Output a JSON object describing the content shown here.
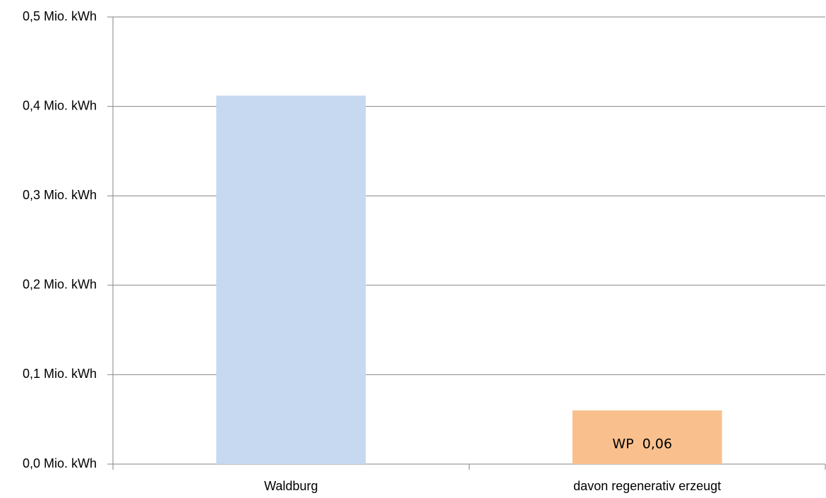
{
  "chart_data": {
    "type": "bar",
    "categories": [
      "Waldburg",
      "davon regenerativ erzeugt"
    ],
    "values": [
      0.412,
      0.06
    ],
    "value_labels": [
      null,
      "WP  0,06"
    ],
    "colors": [
      "#c6d9f1",
      "#f9c08e"
    ],
    "ylim": [
      0,
      0.5
    ],
    "yticks": [
      {
        "value": 0,
        "label": "0,0 Mio. kWh"
      },
      {
        "value": 0.1,
        "label": "0,1 Mio. kWh"
      },
      {
        "value": 0.2,
        "label": "0,2 Mio. kWh"
      },
      {
        "value": 0.3,
        "label": "0,3 Mio. kWh"
      },
      {
        "value": 0.4,
        "label": "0,4 Mio. kWh"
      },
      {
        "value": 0.5,
        "label": "0,5 Mio. kWh"
      }
    ],
    "grid": true
  }
}
